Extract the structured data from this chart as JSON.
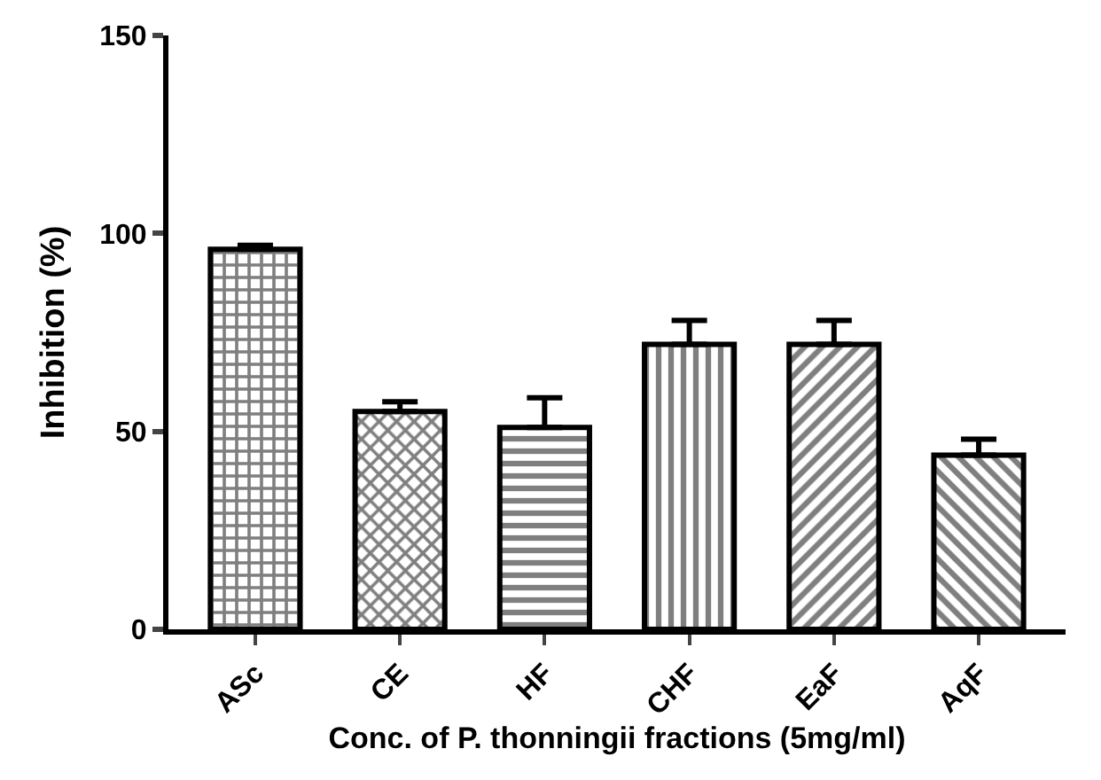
{
  "chart_data": {
    "type": "bar",
    "xlabel": "Conc. of P. thonningii fractions (5mg/ml)",
    "ylabel": "Inhibition (%)",
    "categories": [
      "ASc",
      "CE",
      "HF",
      "CHF",
      "EaF",
      "AqF"
    ],
    "values": [
      96,
      55,
      51,
      72,
      72,
      44
    ],
    "errors": [
      1,
      2.5,
      7.5,
      6,
      6,
      4
    ],
    "color": "#000000",
    "ylim": [
      0,
      150
    ],
    "yticks": [
      0,
      50,
      100,
      150
    ]
  }
}
